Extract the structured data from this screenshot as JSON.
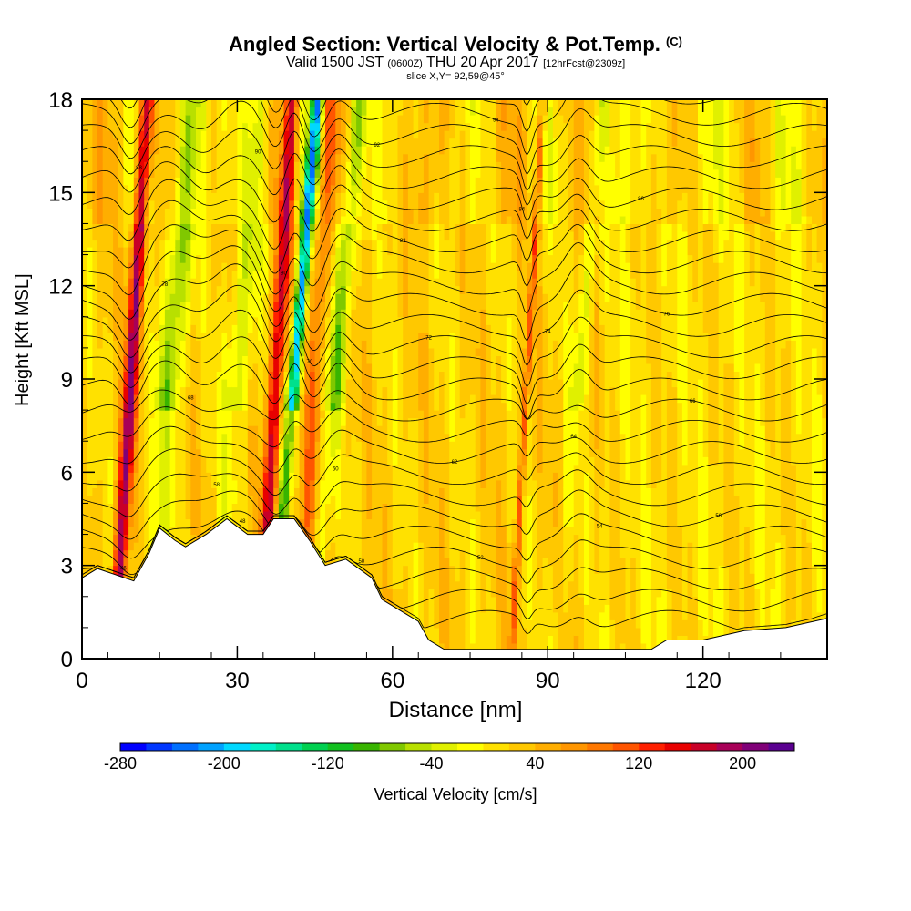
{
  "title": {
    "main": "Angled Section: Vertical Velocity & Pot.Temp.",
    "units_tag": "(C)",
    "valid_prefix": "Valid 1500 JST",
    "valid_utc": "(0600Z)",
    "valid_date": "THU 20 Apr 2017",
    "forecast": "[12hrFcst@2309z]",
    "slice": "slice X,Y= 92,59@45°"
  },
  "chart_data": {
    "type": "heatmap",
    "xlabel": "Distance [nm]",
    "ylabel": "Height [Kft MSL]",
    "xlim": [
      0,
      144
    ],
    "ylim": [
      0,
      18
    ],
    "x_ticks": [
      "0",
      "30",
      "60",
      "90",
      "120"
    ],
    "x_tick_values": [
      0,
      30,
      60,
      90,
      120
    ],
    "y_ticks": [
      "0",
      "3",
      "6",
      "9",
      "12",
      "15",
      "18"
    ],
    "y_tick_values": [
      0,
      3,
      6,
      9,
      12,
      15,
      18
    ],
    "colorbar": {
      "label": "Vertical Velocity [cm/s]",
      "tick_labels": [
        "-280",
        "-200",
        "-120",
        "-40",
        "40",
        "120",
        "200"
      ],
      "tick_values": [
        -280,
        -200,
        -120,
        -40,
        40,
        120,
        200
      ],
      "range": [
        -280,
        240
      ],
      "step": 20,
      "colors": [
        "#0000ff",
        "#0037ff",
        "#0070ff",
        "#00a2ff",
        "#00d8ff",
        "#00f0c8",
        "#00e08c",
        "#00d050",
        "#12c020",
        "#38b400",
        "#80c800",
        "#b8e000",
        "#e0f000",
        "#ffff00",
        "#ffe100",
        "#ffc800",
        "#ffae00",
        "#ff9600",
        "#ff7800",
        "#ff5500",
        "#ff2000",
        "#e80000",
        "#c80028",
        "#a80058",
        "#800078",
        "#5a0090"
      ]
    },
    "ridges": [
      {
        "x": 9.5,
        "sigma": 1.3,
        "amp": 180
      },
      {
        "x": 37.5,
        "sigma": 1.4,
        "amp": 150
      },
      {
        "x": 45,
        "sigma": 1.6,
        "amp": 70
      },
      {
        "x": 86,
        "sigma": 0.6,
        "amp": 90
      }
    ],
    "downdrafts": [
      {
        "x": 41,
        "sigma": 1.1,
        "amp": -230
      },
      {
        "x": 49,
        "sigma": 1.8,
        "amp": -90
      },
      {
        "x": 17,
        "sigma": 2.5,
        "amp": -90
      },
      {
        "x": 30,
        "sigma": 2.5,
        "amp": -60
      },
      {
        "x": 96,
        "sigma": 1.5,
        "amp": -50
      }
    ],
    "terrain": [
      [
        0,
        2.6
      ],
      [
        3,
        2.9
      ],
      [
        10,
        2.5
      ],
      [
        13,
        3.4
      ],
      [
        15,
        4.2
      ],
      [
        18,
        3.8
      ],
      [
        20,
        3.6
      ],
      [
        24,
        4.0
      ],
      [
        28,
        4.5
      ],
      [
        32,
        4.0
      ],
      [
        35,
        4.0
      ],
      [
        37,
        4.5
      ],
      [
        41,
        4.5
      ],
      [
        44,
        3.8
      ],
      [
        47,
        3.0
      ],
      [
        51,
        3.2
      ],
      [
        56,
        2.6
      ],
      [
        58,
        1.9
      ],
      [
        61,
        1.6
      ],
      [
        65,
        1.2
      ],
      [
        67,
        0.6
      ],
      [
        70,
        0.3
      ],
      [
        100,
        0.3
      ],
      [
        110,
        0.3
      ],
      [
        113,
        0.6
      ],
      [
        120,
        0.6
      ],
      [
        128,
        0.9
      ],
      [
        136,
        1.0
      ],
      [
        144,
        1.3
      ]
    ],
    "isentrope_labels": [
      "46",
      "48",
      "50",
      "52",
      "54",
      "56",
      "58",
      "60",
      "62",
      "64",
      "66",
      "68",
      "70",
      "72",
      "74",
      "76",
      "78",
      "80",
      "82",
      "84",
      "86",
      "88",
      "90",
      "92",
      "94",
      "96",
      "98",
      "100"
    ]
  }
}
